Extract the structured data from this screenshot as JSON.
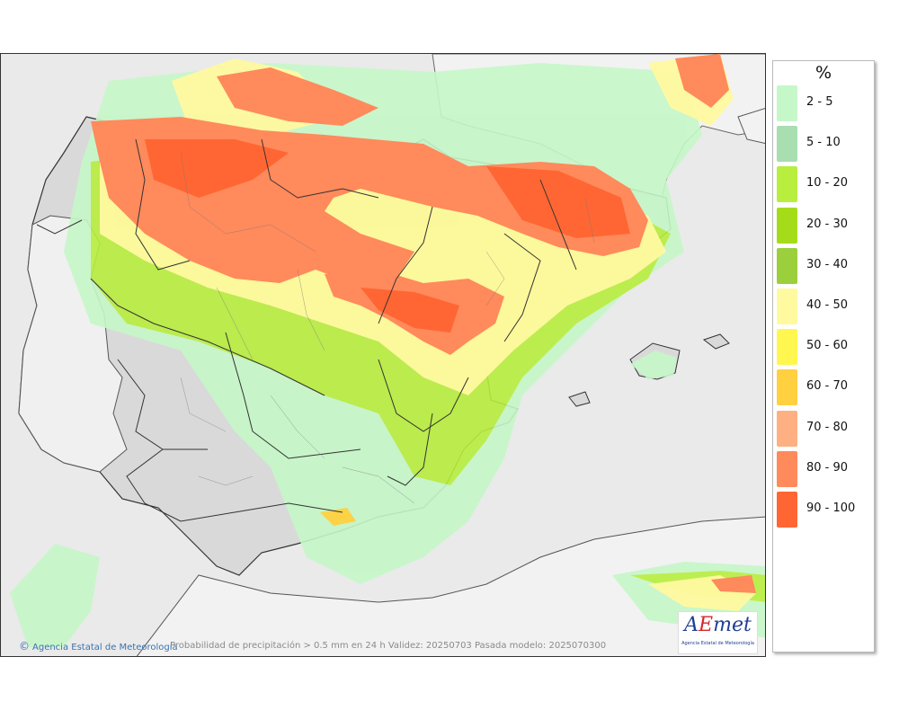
{
  "legend": {
    "unit": "%",
    "items": [
      {
        "label": "2 - 5",
        "color": "#c6f7c8"
      },
      {
        "label": "5 - 10",
        "color": "#a8deb0"
      },
      {
        "label": "10 - 20",
        "color": "#b8ee3e"
      },
      {
        "label": "20 - 30",
        "color": "#a5dc1a"
      },
      {
        "label": "30 - 40",
        "color": "#9ccf3c"
      },
      {
        "label": "40 - 50",
        "color": "#fff9a0"
      },
      {
        "label": "50 - 60",
        "color": "#fff750"
      },
      {
        "label": "60 - 70",
        "color": "#ffd040"
      },
      {
        "label": "70 - 80",
        "color": "#ffb082"
      },
      {
        "label": "80 - 90",
        "color": "#ff8a5c"
      },
      {
        "label": "90 - 100",
        "color": "#ff6633"
      }
    ]
  },
  "footer": {
    "credit": "Agencia Estatal de Meteorología",
    "copyright_symbol": "©",
    "note": "Probabilidad de precipitación > 0.5 mm en 24 h Validez: 20250703 Pasada modelo: 2025070300"
  },
  "logo": {
    "word_a": "A",
    "word_e": "E",
    "word_rest": "met",
    "subtitle": "Agencia Estatal de Meteorología"
  }
}
